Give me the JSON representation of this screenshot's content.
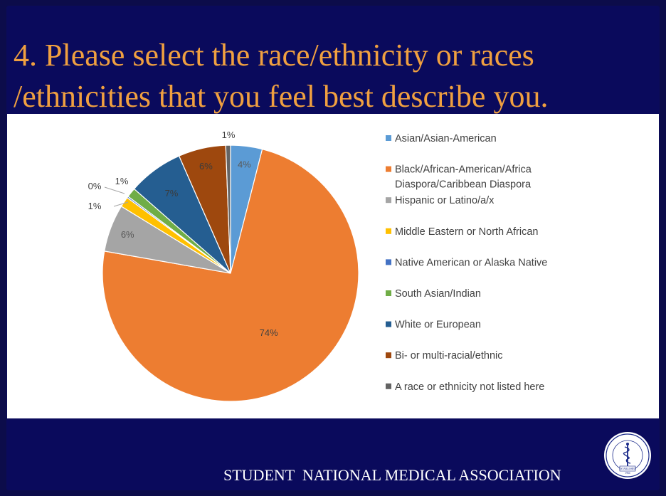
{
  "slide": {
    "title_line1": "4. Please select the race/ethnicity or races",
    "title_line2": "/ethnicities that you feel best describe you.",
    "footer": "STUDENT  NATIONAL MEDICAL ASSOCIATION",
    "logo_text_top": "Student National Medical Association, Inc.",
    "logo_text_bottom": "ESTABLISHED",
    "logo_year": "1964"
  },
  "colors": {
    "background": "#0a0a5c",
    "title": "#f0a040"
  },
  "chart_data": {
    "type": "pie",
    "title": "",
    "legend_position": "right",
    "slices": [
      {
        "name": "Asian/Asian-American",
        "value": 4,
        "label": "4%",
        "color": "#5b9bd5"
      },
      {
        "name": "Black/African-American/Africa Diaspora/Caribbean Diaspora",
        "value": 74,
        "label": "74%",
        "color": "#ed7d31"
      },
      {
        "name": "Hispanic or Latino/a/x",
        "value": 6,
        "label": "6%",
        "color": "#a5a5a5"
      },
      {
        "name": "Middle Eastern or North African",
        "value": 1.3,
        "label": "1%",
        "color": "#ffc000"
      },
      {
        "name": "Native American or Alaska Native",
        "value": 0.2,
        "label": "0%",
        "color": "#4472c4"
      },
      {
        "name": "South Asian/Indian",
        "value": 1.2,
        "label": "1%",
        "color": "#70ad47"
      },
      {
        "name": "White or European",
        "value": 7,
        "label": "7%",
        "color": "#255e91"
      },
      {
        "name": "Bi- or multi-racial/ethnic",
        "value": 6,
        "label": "6%",
        "color": "#9e480e"
      },
      {
        "name": "A race or ethnicity not listed here",
        "value": 0.6,
        "label": "1%",
        "color": "#636363"
      }
    ],
    "legend_lines": [
      [
        "Asian/Asian-American"
      ],
      [
        "Black/African-American/Africa",
        "Diaspora/Caribbean Diaspora"
      ],
      [
        "Hispanic or Latino/a/x"
      ],
      [
        "Middle Eastern or North African"
      ],
      [
        "Native American or Alaska Native"
      ],
      [
        "South Asian/Indian"
      ],
      [
        "White or European"
      ],
      [
        "Bi- or multi-racial/ethnic"
      ],
      [
        "A race or ethnicity not listed here"
      ]
    ]
  }
}
